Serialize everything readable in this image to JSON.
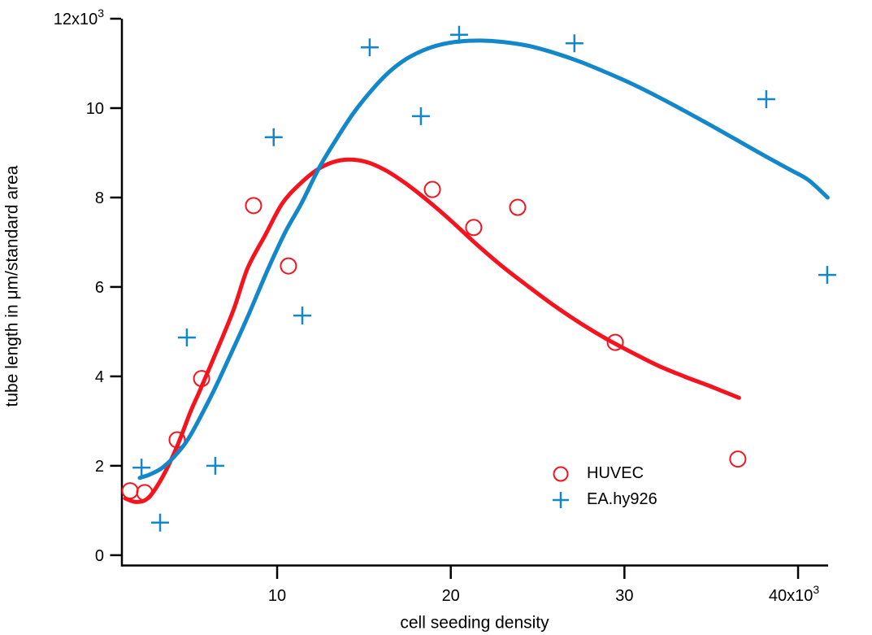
{
  "page": {
    "background": "#ffffff",
    "text_color": "#000000"
  },
  "chart_data": {
    "type": "scatter",
    "title": "",
    "xlabel": "cell seeding density",
    "ylabel": "tube length in μm/standard area",
    "axis_color": "#000000",
    "grid": false,
    "legend_position": "inside-bottom-right",
    "xlim": [
      1060,
      41730
    ],
    "ylim": [
      -230,
      12000
    ],
    "x_ticks": [
      {
        "value": 10000,
        "label": "10"
      },
      {
        "value": 20000,
        "label": "20"
      },
      {
        "value": 30000,
        "label": "30"
      },
      {
        "value": 40000,
        "label": "40x10",
        "exp": "3"
      }
    ],
    "y_ticks": [
      {
        "value": 0,
        "label": "0"
      },
      {
        "value": 2000,
        "label": "2"
      },
      {
        "value": 4000,
        "label": "4"
      },
      {
        "value": 6000,
        "label": "6"
      },
      {
        "value": 8000,
        "label": "8"
      },
      {
        "value": 10000,
        "label": "10"
      },
      {
        "value": 12000,
        "label": "12x10",
        "exp": "3"
      }
    ],
    "series": [
      {
        "name": "HUVEC",
        "marker": "circle",
        "color": "#f5131e",
        "points": [
          [
            1530,
            1440
          ],
          [
            2370,
            1400
          ],
          [
            4240,
            2580
          ],
          [
            5650,
            3950
          ],
          [
            8640,
            7820
          ],
          [
            10650,
            6470
          ],
          [
            18940,
            8180
          ],
          [
            21320,
            7330
          ],
          [
            23850,
            7780
          ],
          [
            29470,
            4760
          ],
          [
            36530,
            2150
          ]
        ]
      },
      {
        "name": "EA.hy926",
        "marker": "plus",
        "color": "#1287c9",
        "points": [
          [
            2190,
            1960
          ],
          [
            3260,
            730
          ],
          [
            4800,
            4870
          ],
          [
            6440,
            2000
          ],
          [
            9800,
            9350
          ],
          [
            11450,
            5360
          ],
          [
            15330,
            11360
          ],
          [
            18280,
            9820
          ],
          [
            20480,
            11640
          ],
          [
            27120,
            11450
          ],
          [
            38170,
            10200
          ],
          [
            41680,
            6270
          ]
        ]
      }
    ],
    "fit_curves": [
      {
        "series": "HUVEC",
        "color": "#f5131e",
        "points": [
          [
            1250,
            1270
          ],
          [
            1900,
            1190
          ],
          [
            2600,
            1290
          ],
          [
            3400,
            1750
          ],
          [
            4200,
            2400
          ],
          [
            5000,
            3200
          ],
          [
            5500,
            3640
          ],
          [
            6500,
            4550
          ],
          [
            7500,
            5500
          ],
          [
            8300,
            6420
          ],
          [
            9300,
            7150
          ],
          [
            10300,
            7870
          ],
          [
            11300,
            8300
          ],
          [
            12300,
            8620
          ],
          [
            13200,
            8790
          ],
          [
            14100,
            8850
          ],
          [
            15100,
            8800
          ],
          [
            16100,
            8640
          ],
          [
            17100,
            8400
          ],
          [
            18100,
            8110
          ],
          [
            19100,
            7790
          ],
          [
            20100,
            7450
          ],
          [
            21500,
            6950
          ],
          [
            23000,
            6450
          ],
          [
            24500,
            6000
          ],
          [
            26000,
            5570
          ],
          [
            27500,
            5180
          ],
          [
            29000,
            4830
          ],
          [
            30500,
            4520
          ],
          [
            32000,
            4230
          ],
          [
            33500,
            3990
          ],
          [
            35000,
            3770
          ],
          [
            36600,
            3520
          ]
        ]
      },
      {
        "series": "EA.hy926",
        "color": "#1287c9",
        "points": [
          [
            2090,
            1730
          ],
          [
            2700,
            1810
          ],
          [
            3400,
            1960
          ],
          [
            4200,
            2260
          ],
          [
            5000,
            2680
          ],
          [
            6300,
            3640
          ],
          [
            7300,
            4470
          ],
          [
            8300,
            5330
          ],
          [
            9500,
            6420
          ],
          [
            10500,
            7250
          ],
          [
            11400,
            7870
          ],
          [
            12400,
            8650
          ],
          [
            13400,
            9300
          ],
          [
            14400,
            9890
          ],
          [
            15400,
            10380
          ],
          [
            16400,
            10790
          ],
          [
            17400,
            11090
          ],
          [
            18400,
            11290
          ],
          [
            19400,
            11420
          ],
          [
            20500,
            11490
          ],
          [
            21700,
            11510
          ],
          [
            23000,
            11480
          ],
          [
            24500,
            11390
          ],
          [
            26000,
            11230
          ],
          [
            27500,
            11030
          ],
          [
            29000,
            10790
          ],
          [
            30500,
            10530
          ],
          [
            32000,
            10240
          ],
          [
            33500,
            9930
          ],
          [
            35000,
            9610
          ],
          [
            36500,
            9280
          ],
          [
            38000,
            8950
          ],
          [
            39500,
            8630
          ],
          [
            40600,
            8390
          ],
          [
            41700,
            8000
          ]
        ]
      }
    ]
  }
}
